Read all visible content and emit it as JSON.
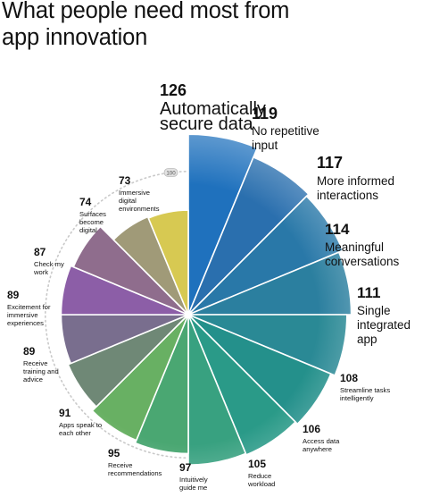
{
  "title": "What people need most from app innovation",
  "chart_data": {
    "type": "polar-bar",
    "title": "What people need most from app innovation",
    "scale_marker": "100",
    "slices": [
      {
        "value": 126,
        "label": "Automatically secure data",
        "color": "#1f71bd"
      },
      {
        "value": 119,
        "label": "No repetitive input",
        "color": "#2a6fae"
      },
      {
        "value": 117,
        "label": "More informed interactions",
        "color": "#2978a8"
      },
      {
        "value": 114,
        "label": "Meaningful conversations",
        "color": "#2b7f9f"
      },
      {
        "value": 111,
        "label": "Single integrated app",
        "color": "#2a8995"
      },
      {
        "value": 108,
        "label": "Streamline tasks intelligently",
        "color": "#24908b"
      },
      {
        "value": 106,
        "label": "Access data anywhere",
        "color": "#2a9a88"
      },
      {
        "value": 105,
        "label": "Reduce workload",
        "color": "#38a180"
      },
      {
        "value": 97,
        "label": "Intuitively guide me",
        "color": "#4aa772"
      },
      {
        "value": 95,
        "label": "Receive recommendations",
        "color": "#68b063"
      },
      {
        "value": 91,
        "label": "Apps speak to each other",
        "color": "#6f8876"
      },
      {
        "value": 89,
        "label": "Receive training and advice",
        "color": "#796e8e"
      },
      {
        "value": 89,
        "label": "Excitement for immersive experiences",
        "color": "#8c5ea7"
      },
      {
        "value": 87,
        "label": "Check my work",
        "color": "#8f6d8d"
      },
      {
        "value": 74,
        "label": "Surfaces become digital",
        "color": "#a09a78"
      },
      {
        "value": 73,
        "label": "Immersive digital environments",
        "color": "#d7c952"
      }
    ]
  }
}
